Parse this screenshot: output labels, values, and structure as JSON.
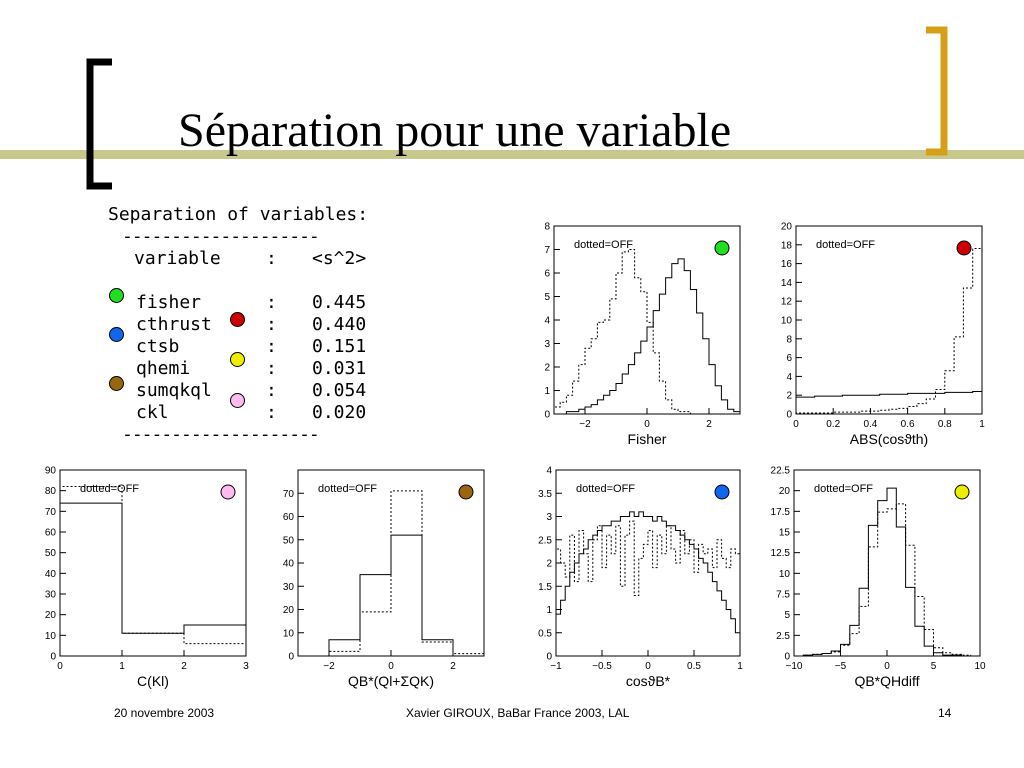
{
  "slide": {
    "title": "Séparation pour une variable",
    "accent_line": "#c8c88c",
    "bracket_dark": "#000000",
    "bracket_gold": "#d4a017"
  },
  "table": {
    "title": "Separation of variables:",
    "dashes": "--------------------",
    "header": {
      "variable": "variable",
      "colon": ":",
      "value": "<s^2>"
    },
    "rows": [
      {
        "name": "fisher",
        "colon": ":",
        "value": "0.445",
        "color": "#22dd22"
      },
      {
        "name": "cthrust",
        "colon": ":",
        "value": "0.440",
        "color": "#cc0000"
      },
      {
        "name": "ctsb",
        "colon": ":",
        "value": "0.151",
        "color": "#1166ee"
      },
      {
        "name": "qhemi",
        "colon": ":",
        "value": "0.031",
        "color": "#eeee00"
      },
      {
        "name": "sumqkql",
        "colon": ":",
        "value": "0.054",
        "color": "#996611"
      },
      {
        "name": "ckl",
        "colon": ":",
        "value": "0.020",
        "color": "#ffbbee"
      }
    ]
  },
  "footer": {
    "date": "20 novembre 2003",
    "author": "Xavier GIROUX, BaBar France 2003, LAL",
    "page": "14"
  },
  "chart_data": [
    {
      "type": "histogram",
      "legend": "dotted=OFF",
      "marker_color": "#22dd22",
      "xlabel": "Fisher",
      "xlim": [
        -3,
        3
      ],
      "ylim": [
        0,
        8
      ],
      "xticks": [
        -2,
        0,
        2
      ],
      "yticks": [
        0,
        1,
        2,
        3,
        4,
        5,
        6,
        7,
        8
      ],
      "bins": [
        -3.0,
        -2.8,
        -2.6,
        -2.4,
        -2.2,
        -2.0,
        -1.8,
        -1.6,
        -1.4,
        -1.2,
        -1.0,
        -0.8,
        -0.6,
        -0.4,
        -0.2,
        0.0,
        0.2,
        0.4,
        0.6,
        0.8,
        1.0,
        1.2,
        1.4,
        1.6,
        1.8,
        2.0,
        2.2,
        2.4,
        2.6,
        2.8,
        3.0
      ],
      "series": [
        {
          "style": "solid",
          "values": [
            0,
            0,
            0.1,
            0.1,
            0.2,
            0.3,
            0.4,
            0.6,
            0.8,
            1.0,
            1.3,
            1.7,
            2.1,
            2.6,
            3.1,
            3.7,
            4.4,
            5.1,
            5.8,
            6.4,
            6.6,
            6.1,
            5.3,
            4.3,
            3.2,
            2.1,
            1.2,
            0.6,
            0.2,
            0.1
          ]
        },
        {
          "style": "dotted",
          "values": [
            0.3,
            0.5,
            0.8,
            1.4,
            2.1,
            2.8,
            3.2,
            3.9,
            4.0,
            4.9,
            6.0,
            6.9,
            7.0,
            5.8,
            5.2,
            3.9,
            2.6,
            1.4,
            0.6,
            0.2,
            0.1,
            0.1,
            0,
            0,
            0,
            0,
            0,
            0,
            0,
            0
          ]
        }
      ]
    },
    {
      "type": "histogram",
      "legend": "dotted=OFF",
      "marker_color": "#cc0000",
      "xlabel": "ABS(cosϑth)",
      "xlim": [
        0,
        1
      ],
      "ylim": [
        0,
        20
      ],
      "xticks": [
        0,
        0.2,
        0.4,
        0.6,
        0.8,
        1
      ],
      "yticks": [
        0,
        2,
        4,
        6,
        8,
        10,
        12,
        14,
        16,
        18,
        20
      ],
      "bins": [
        0,
        0.05,
        0.1,
        0.15,
        0.2,
        0.25,
        0.3,
        0.35,
        0.4,
        0.45,
        0.5,
        0.55,
        0.6,
        0.65,
        0.7,
        0.75,
        0.8,
        0.85,
        0.9,
        0.95,
        1.0
      ],
      "series": [
        {
          "style": "solid",
          "values": [
            1.8,
            1.8,
            1.9,
            1.9,
            1.9,
            2.0,
            2.0,
            2.0,
            2.0,
            2.1,
            2.1,
            2.1,
            2.2,
            2.2,
            2.2,
            2.2,
            2.3,
            2.3,
            2.3,
            2.4
          ]
        },
        {
          "style": "dotted",
          "values": [
            0.1,
            0.1,
            0.1,
            0.1,
            0.2,
            0.2,
            0.2,
            0.3,
            0.3,
            0.4,
            0.5,
            0.6,
            0.8,
            1.1,
            1.6,
            2.6,
            4.6,
            8.2,
            13.4,
            17.6
          ]
        }
      ]
    },
    {
      "type": "histogram",
      "legend": "dotted=OFF",
      "marker_color": "#ffbbee",
      "xlabel": "C(Kl)",
      "xlim": [
        0,
        3
      ],
      "ylim": [
        0,
        90
      ],
      "xticks": [
        0,
        1,
        2,
        3
      ],
      "yticks": [
        0,
        10,
        20,
        30,
        40,
        50,
        60,
        70,
        80,
        90
      ],
      "bins": [
        0,
        1,
        2,
        3
      ],
      "series": [
        {
          "style": "solid",
          "values": [
            74,
            11,
            15
          ]
        },
        {
          "style": "dotted",
          "values": [
            82,
            11,
            6
          ]
        }
      ]
    },
    {
      "type": "histogram",
      "legend": "dotted=OFF",
      "marker_color": "#996611",
      "xlabel": "QB*(Ql+ΣQK)",
      "xlim": [
        -3,
        3
      ],
      "ylim": [
        0,
        80
      ],
      "xticks": [
        -2,
        0,
        2
      ],
      "yticks": [
        0,
        10,
        20,
        30,
        40,
        50,
        60,
        70
      ],
      "bins": [
        -3,
        -2,
        -1,
        0,
        1,
        2,
        3
      ],
      "series": [
        {
          "style": "solid",
          "values": [
            0,
            7,
            35,
            52,
            7,
            0
          ]
        },
        {
          "style": "dotted",
          "values": [
            0,
            2,
            19,
            71,
            6,
            1
          ]
        }
      ]
    },
    {
      "type": "histogram",
      "legend": "dotted=OFF",
      "marker_color": "#1166ee",
      "xlabel": "cosϑB*",
      "xlim": [
        -1,
        1
      ],
      "ylim": [
        0,
        4
      ],
      "xticks": [
        -1,
        -0.5,
        0,
        0.5,
        1
      ],
      "yticks": [
        0,
        0.5,
        1,
        1.5,
        2,
        2.5,
        3,
        3.5,
        4
      ],
      "bins": [
        -1.0,
        -0.95,
        -0.9,
        -0.85,
        -0.8,
        -0.75,
        -0.7,
        -0.65,
        -0.6,
        -0.55,
        -0.5,
        -0.45,
        -0.4,
        -0.35,
        -0.3,
        -0.25,
        -0.2,
        -0.15,
        -0.1,
        -0.05,
        0.0,
        0.05,
        0.1,
        0.15,
        0.2,
        0.25,
        0.3,
        0.35,
        0.4,
        0.45,
        0.5,
        0.55,
        0.6,
        0.65,
        0.7,
        0.75,
        0.8,
        0.85,
        0.9,
        0.95,
        1.0
      ],
      "series": [
        {
          "style": "solid",
          "values": [
            0.9,
            1.2,
            1.5,
            1.8,
            2.0,
            2.2,
            2.3,
            2.5,
            2.6,
            2.7,
            2.8,
            2.8,
            2.9,
            2.9,
            3.0,
            3.0,
            3.1,
            3.0,
            3.1,
            3.0,
            3.0,
            2.9,
            3.0,
            2.9,
            2.8,
            2.8,
            2.7,
            2.6,
            2.5,
            2.4,
            2.3,
            2.1,
            2.0,
            1.8,
            1.6,
            1.4,
            1.2,
            1.0,
            0.8,
            0.5
          ]
        },
        {
          "style": "dotted",
          "values": [
            2.3,
            2.0,
            1.7,
            2.6,
            1.6,
            2.7,
            2.2,
            1.6,
            2.5,
            2.8,
            1.9,
            2.6,
            2.2,
            2.8,
            1.5,
            2.6,
            2.9,
            1.3,
            2.1,
            2.4,
            2.7,
            1.9,
            2.6,
            2.2,
            2.8,
            2.3,
            2.0,
            2.7,
            2.2,
            2.5,
            1.8,
            2.4,
            2.2,
            2.3,
            1.9,
            2.5,
            2.1,
            1.9,
            2.3,
            2.2
          ]
        }
      ]
    },
    {
      "type": "histogram",
      "legend": "dotted=OFF",
      "marker_color": "#eeee00",
      "xlabel": "QB*QHdiff",
      "xlim": [
        -10,
        10
      ],
      "ylim": [
        0,
        22.5
      ],
      "xticks": [
        -10,
        -5,
        0,
        5,
        10
      ],
      "yticks": [
        0,
        2.5,
        5,
        7.5,
        10,
        12.5,
        15,
        17.5,
        20,
        22.5
      ],
      "bins": [
        -10,
        -9,
        -8,
        -7,
        -6,
        -5,
        -4,
        -3,
        -2,
        -1,
        0,
        1,
        2,
        3,
        4,
        5,
        6,
        7,
        8,
        9,
        10
      ],
      "series": [
        {
          "style": "solid",
          "values": [
            0,
            0.1,
            0.2,
            0.3,
            0.6,
            1.4,
            3.7,
            8.2,
            15.8,
            18.8,
            20.3,
            15.6,
            8.3,
            3.6,
            1.2,
            0.4,
            0.1,
            0.1,
            0,
            0
          ]
        },
        {
          "style": "dotted",
          "values": [
            0,
            0.1,
            0.2,
            0.3,
            0.5,
            1.3,
            2.7,
            6.0,
            13.2,
            17.4,
            17.8,
            18.4,
            13.4,
            7.2,
            3.2,
            1.0,
            0.4,
            0.2,
            0.1,
            0
          ]
        }
      ]
    }
  ]
}
